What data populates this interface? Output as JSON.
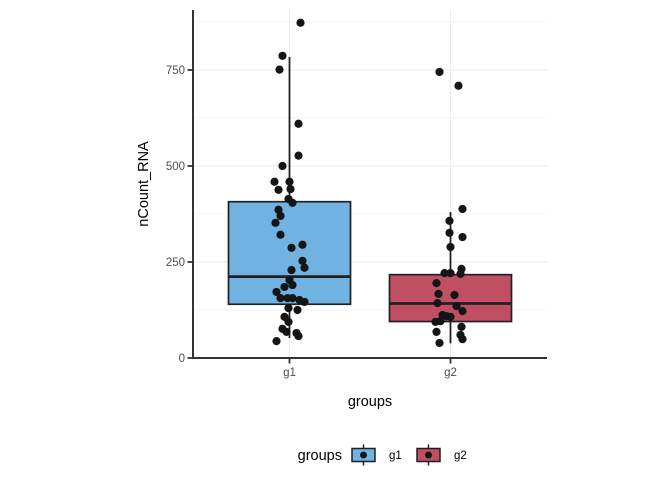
{
  "figure": {
    "background": "#ffffff"
  },
  "colors": {
    "g1_fill": "#70B3E2",
    "g2_fill": "#C14F64",
    "box_outline": "#212121",
    "point": "#151515",
    "axis_line": "#333333",
    "grid_major": "#EBEBEB",
    "grid_minor": "#F5F5F5",
    "tick_label": "#4D4D4D",
    "title_text": "#000000"
  },
  "chart_data": {
    "type": "boxplot",
    "title": "",
    "xlabel": "groups",
    "ylabel": "nCount_RNA",
    "categories": [
      "g1",
      "g2"
    ],
    "y_ticks": [
      0,
      250,
      500,
      750
    ],
    "y_tick_labels": [
      "0",
      "250",
      "500",
      "750"
    ],
    "y_minor_ticks": [
      125,
      375,
      625,
      875
    ],
    "ylim": [
      0,
      906
    ],
    "grid": true,
    "legend": {
      "title": "groups",
      "position": "bottom",
      "entries": [
        "g1",
        "g2"
      ]
    },
    "series": [
      {
        "name": "g1",
        "fill": "#70B3E2",
        "box": {
          "lower_whisker": 52,
          "q1": 140,
          "median": 212,
          "q3": 407,
          "upper_whisker": 784
        },
        "points": [
          [
            11,
            873
          ],
          [
            -7,
            787
          ],
          [
            -10,
            751
          ],
          [
            9,
            610
          ],
          [
            9,
            527
          ],
          [
            -7,
            500
          ],
          [
            -15,
            459
          ],
          [
            0,
            459
          ],
          [
            1,
            440
          ],
          [
            -11,
            438
          ],
          [
            -1,
            414
          ],
          [
            3,
            404
          ],
          [
            -11,
            386
          ],
          [
            -9,
            370
          ],
          [
            -14,
            352
          ],
          [
            -9,
            321
          ],
          [
            13,
            295
          ],
          [
            2,
            287
          ],
          [
            13,
            253
          ],
          [
            15,
            235
          ],
          [
            2,
            229
          ],
          [
            0,
            203
          ],
          [
            3,
            190
          ],
          [
            -5,
            185
          ],
          [
            -13,
            172
          ],
          [
            -9,
            156
          ],
          [
            -2,
            156
          ],
          [
            3,
            156
          ],
          [
            10,
            151
          ],
          [
            15,
            146
          ],
          [
            -1,
            130
          ],
          [
            8,
            125
          ],
          [
            -5,
            107
          ],
          [
            -1,
            94
          ],
          [
            -7,
            76
          ],
          [
            -3,
            68
          ],
          [
            7,
            65
          ],
          [
            9,
            57
          ],
          [
            -13,
            44
          ]
        ]
      },
      {
        "name": "g2",
        "fill": "#C14F64",
        "box": {
          "lower_whisker": 38,
          "q1": 95,
          "median": 142,
          "q3": 217,
          "upper_whisker": 380
        },
        "points": [
          [
            -11,
            745
          ],
          [
            8,
            709
          ],
          [
            12,
            388
          ],
          [
            -1,
            357
          ],
          [
            -1,
            326
          ],
          [
            12,
            315
          ],
          [
            0,
            289
          ],
          [
            11,
            232
          ],
          [
            -6,
            221
          ],
          [
            0,
            221
          ],
          [
            10,
            219
          ],
          [
            -14,
            195
          ],
          [
            -12,
            167
          ],
          [
            4,
            164
          ],
          [
            -13,
            143
          ],
          [
            6,
            135
          ],
          [
            12,
            122
          ],
          [
            -8,
            112
          ],
          [
            -4,
            109
          ],
          [
            0,
            107
          ],
          [
            -10,
            96
          ],
          [
            -15,
            94
          ],
          [
            11,
            81
          ],
          [
            -14,
            68
          ],
          [
            10,
            60
          ],
          [
            12,
            49
          ],
          [
            -11,
            39
          ]
        ]
      }
    ]
  }
}
